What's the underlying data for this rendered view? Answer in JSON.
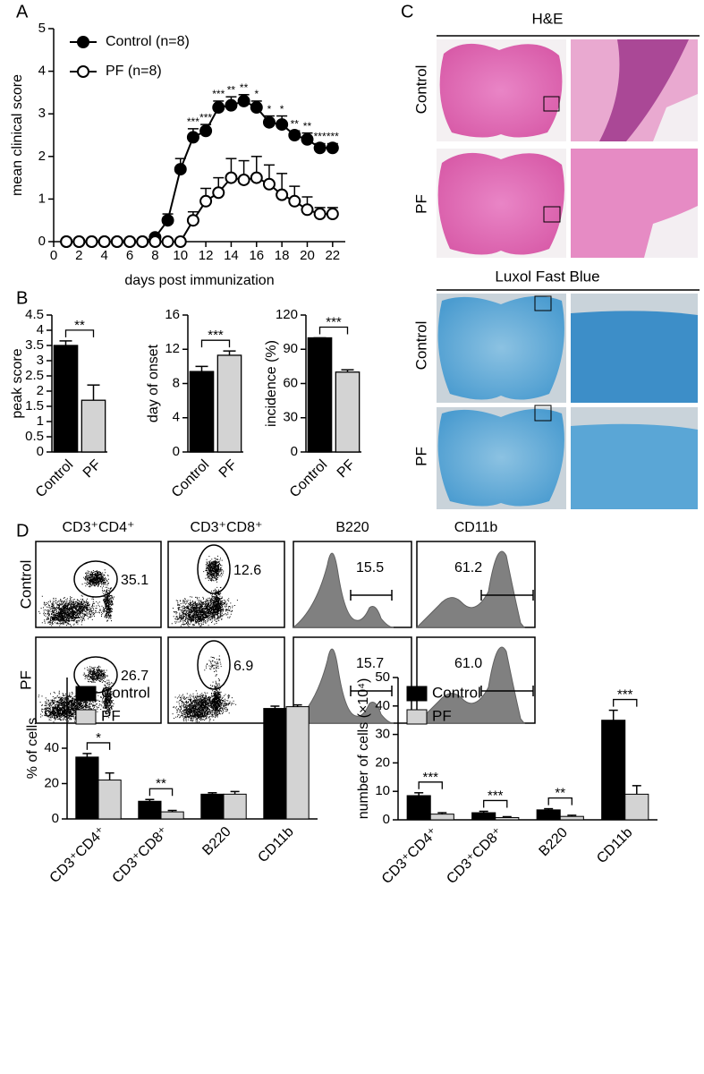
{
  "panel_labels": [
    "A",
    "B",
    "C",
    "D"
  ],
  "chart_data": [
    {
      "type": "line",
      "xlabel": "days post immunization",
      "ylabel": "mean clinical score",
      "x": [
        1,
        2,
        3,
        4,
        5,
        6,
        7,
        8,
        9,
        10,
        11,
        12,
        13,
        14,
        15,
        16,
        17,
        18,
        19,
        20,
        21,
        22
      ],
      "series": [
        {
          "name": "Control (n=8)",
          "color": "#000000",
          "marker": "filled",
          "values": [
            0,
            0,
            0,
            0,
            0,
            0,
            0,
            0.1,
            0.5,
            1.7,
            2.45,
            2.6,
            3.15,
            3.2,
            3.3,
            3.15,
            2.8,
            2.75,
            2.5,
            2.4,
            2.2,
            2.2
          ],
          "errors": [
            0,
            0,
            0,
            0,
            0,
            0,
            0,
            0,
            0.15,
            0.25,
            0.2,
            0.15,
            0.15,
            0.2,
            0.15,
            0.15,
            0.15,
            0.2,
            0.1,
            0.15,
            0.1,
            0.1
          ]
        },
        {
          "name": "PF (n=8)",
          "color": "#000000",
          "marker": "open",
          "values": [
            0,
            0,
            0,
            0,
            0,
            0,
            0,
            0,
            0,
            0,
            0.5,
            0.95,
            1.15,
            1.5,
            1.45,
            1.5,
            1.35,
            1.1,
            0.95,
            0.75,
            0.65,
            0.65
          ],
          "errors": [
            0,
            0,
            0,
            0,
            0,
            0,
            0,
            0,
            0,
            0,
            0.2,
            0.3,
            0.35,
            0.45,
            0.45,
            0.5,
            0.45,
            0.5,
            0.35,
            0.3,
            0.15,
            0.15
          ]
        }
      ],
      "annotations": {
        "x": [
          11,
          12,
          13,
          14,
          15,
          16,
          17,
          18,
          19,
          20,
          21,
          22
        ],
        "labels": [
          "***",
          "***",
          "***",
          "**",
          "**",
          "*",
          "*",
          "*",
          "**",
          "**",
          "***",
          "***"
        ]
      },
      "xlim": [
        0,
        23
      ],
      "xticks": [
        0,
        2,
        4,
        6,
        8,
        10,
        12,
        14,
        16,
        18,
        20,
        22
      ],
      "ylim": [
        0,
        5
      ],
      "yticks": [
        0,
        1,
        2,
        3,
        4,
        5
      ],
      "legend": "upper left"
    },
    {
      "type": "bar",
      "ylabel": "peak score",
      "categories": [
        "Control",
        "PF"
      ],
      "values": [
        3.5,
        1.7
      ],
      "errors": [
        0.15,
        0.5
      ],
      "colors": [
        "#000000",
        "#d3d3d3"
      ],
      "ylim": [
        0,
        4.5
      ],
      "yticks": [
        0,
        0.5,
        1,
        1.5,
        2,
        2.5,
        3,
        3.5,
        4,
        4.5
      ],
      "significance": "**"
    },
    {
      "type": "bar",
      "ylabel": "day of onset",
      "categories": [
        "Control",
        "PF"
      ],
      "values": [
        9.4,
        11.3
      ],
      "errors": [
        0.6,
        0.5
      ],
      "colors": [
        "#000000",
        "#d3d3d3"
      ],
      "ylim": [
        0,
        16
      ],
      "yticks": [
        0,
        4,
        8,
        12,
        16
      ],
      "significance": "***"
    },
    {
      "type": "bar",
      "ylabel": "incidence (%)",
      "categories": [
        "Control",
        "PF"
      ],
      "values": [
        100,
        70
      ],
      "errors": [
        0,
        2
      ],
      "colors": [
        "#000000",
        "#d3d3d3"
      ],
      "ylim": [
        0,
        120
      ],
      "yticks": [
        0,
        30,
        60,
        90,
        120
      ],
      "significance": "***"
    },
    {
      "type": "grouped_bar",
      "ylabel": "% of cells",
      "categories": [
        "CD3⁺CD4⁺",
        "CD3⁺CD8⁺",
        "B220",
        "CD11b"
      ],
      "series": [
        {
          "name": "Control",
          "color": "#000000",
          "values": [
            35,
            10,
            14,
            62.5
          ],
          "errors": [
            2,
            1,
            0.8,
            1.3
          ]
        },
        {
          "name": "PF",
          "color": "#d3d3d3",
          "values": [
            22,
            4,
            14,
            63.5
          ],
          "errors": [
            4,
            0.8,
            1.5,
            1
          ]
        }
      ],
      "significance": [
        "*",
        "**",
        null,
        null
      ],
      "ylim": [
        0,
        80
      ],
      "yticks": [
        0,
        20,
        40,
        60
      ],
      "legend": "upper left"
    },
    {
      "type": "grouped_bar",
      "ylabel": "number of cells (×10⁴)",
      "categories": [
        "CD3⁺CD4⁺",
        "CD3⁺CD8⁺",
        "B220",
        "CD11b"
      ],
      "series": [
        {
          "name": "Control",
          "color": "#000000",
          "values": [
            8.5,
            2.5,
            3.5,
            35
          ],
          "errors": [
            1,
            0.5,
            0.4,
            3.5
          ]
        },
        {
          "name": "PF",
          "color": "#d3d3d3",
          "values": [
            2,
            0.8,
            1.2,
            9
          ],
          "errors": [
            0.5,
            0.3,
            0.4,
            3
          ]
        }
      ],
      "significance": [
        "***",
        "***",
        "**",
        "***"
      ],
      "ylim": [
        0,
        50
      ],
      "yticks": [
        0,
        10,
        20,
        30,
        40,
        50
      ],
      "legend": "upper left"
    }
  ],
  "histology": {
    "stains": [
      "H&E",
      "Luxol Fast Blue"
    ],
    "rows": [
      "Control",
      "PF"
    ]
  },
  "flow": {
    "columns": [
      "CD3⁺CD4⁺",
      "CD3⁺CD8⁺",
      "B220",
      "CD11b"
    ],
    "rows": [
      {
        "label": "Control",
        "values": [
          "35.1",
          "12.6",
          "15.5",
          "61.2"
        ]
      },
      {
        "label": "PF",
        "values": [
          "26.7",
          "6.9",
          "15.7",
          "61.0"
        ]
      }
    ]
  }
}
